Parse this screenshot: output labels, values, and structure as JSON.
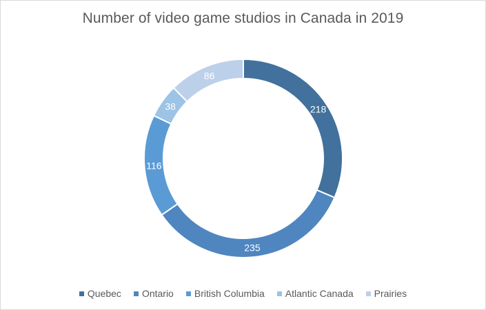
{
  "chart_data": {
    "type": "pie",
    "title": "Number of video game studios in Canada in 2019",
    "categories": [
      "Quebec",
      "Ontario",
      "British Columbia",
      "Atlantic Canada",
      "Prairies"
    ],
    "values": [
      218,
      235,
      116,
      38,
      86
    ],
    "colors": [
      "#41719c",
      "#4f86c0",
      "#5b9bd5",
      "#9dc3e6",
      "#bdd0ea"
    ],
    "legend_position": "bottom",
    "style": "doughnut"
  }
}
